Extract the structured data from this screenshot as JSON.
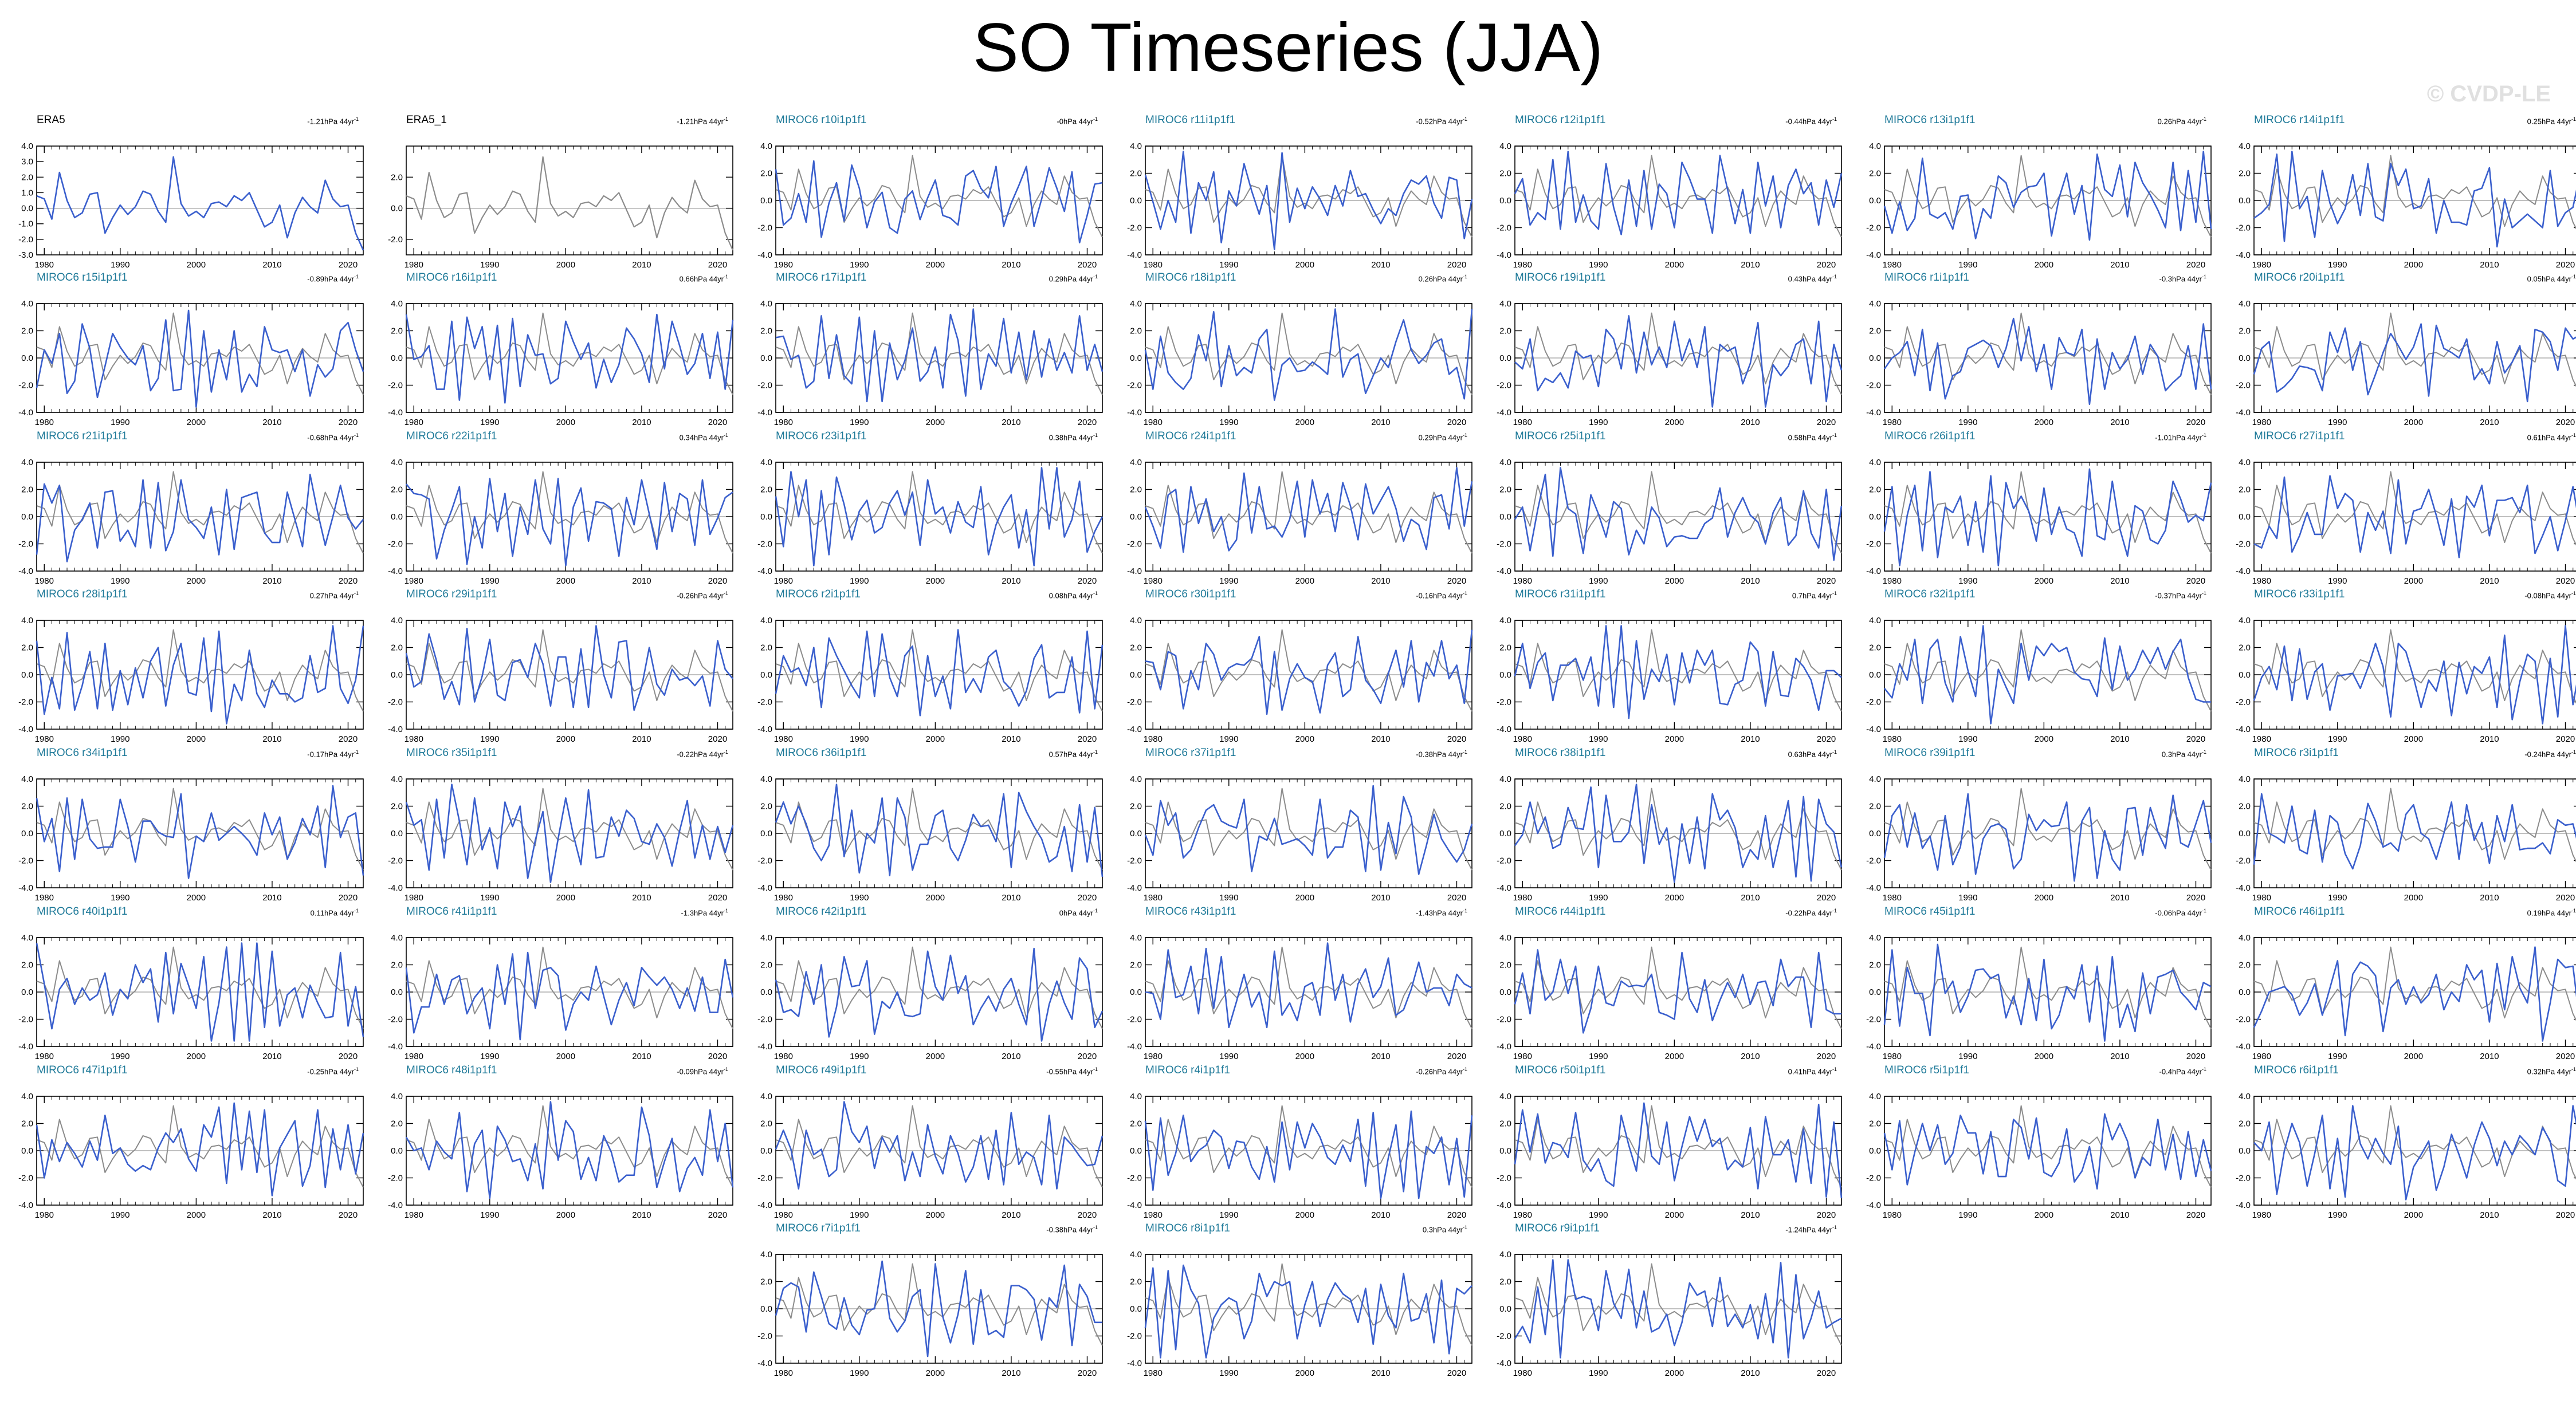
{
  "title": "SO Timeseries (JJA)",
  "watermark": "© CVDP-LE",
  "colors": {
    "model_series": "#3a5fcd",
    "observed_series": "#8c8c8c",
    "model_label": "#1f7a99",
    "observed_label": "#000000",
    "axis": "#000000",
    "zero_line": "#9a9a9a"
  },
  "chart_data": {
    "type": "line",
    "x_range": [
      1979,
      2022
    ],
    "x_ticks": [
      1980,
      1990,
      2000,
      2010,
      2020
    ],
    "ylim": [
      -4,
      4
    ],
    "y_ticks": [
      4.0,
      2.0,
      0.0,
      -2.0,
      -4.0
    ],
    "obs_ylim": [
      -3,
      4
    ],
    "obs_y_ticks": [
      4.0,
      3.0,
      2.0,
      1.0,
      0.0,
      -1.0,
      -2.0,
      -3.0
    ],
    "obs_1_y_ticks": [
      2.0,
      0.0,
      -2.0
    ],
    "trend_unit": "hPa 44yr",
    "trend_exponent": "-1",
    "observed_series": {
      "name": "ERA5",
      "x_start": 1979,
      "values": [
        0.8,
        0.6,
        -0.7,
        2.3,
        0.5,
        -0.6,
        -0.3,
        0.9,
        1.0,
        -1.6,
        -0.6,
        0.2,
        -0.4,
        0.1,
        1.1,
        0.9,
        -0.2,
        -0.9,
        3.3,
        0.3,
        -0.5,
        -0.2,
        -0.6,
        0.3,
        0.4,
        0.1,
        0.8,
        0.5,
        1.0,
        -0.1,
        -1.2,
        -0.9,
        0.2,
        -1.9,
        -0.3,
        0.7,
        0.1,
        -0.3,
        1.8,
        0.6,
        0.1,
        0.2,
        -1.6,
        -2.7
      ]
    },
    "panels": [
      {
        "name": "ERA5",
        "trend": "-1.21",
        "kind": "obs",
        "seed": 0
      },
      {
        "name": "ERA5_1",
        "trend": "-1.21",
        "kind": "obs1",
        "seed": 0
      },
      {
        "name": "MIROC6 r10i1p1f1",
        "trend": "-0",
        "kind": "model",
        "seed": 10
      },
      {
        "name": "MIROC6 r11i1p1f1",
        "trend": "-0.52",
        "kind": "model",
        "seed": 11
      },
      {
        "name": "MIROC6 r12i1p1f1",
        "trend": "-0.44",
        "kind": "model",
        "seed": 12
      },
      {
        "name": "MIROC6 r13i1p1f1",
        "trend": "0.26",
        "kind": "model",
        "seed": 13
      },
      {
        "name": "MIROC6 r14i1p1f1",
        "trend": "0.25",
        "kind": "model",
        "seed": 14
      },
      {
        "name": "MIROC6 r15i1p1f1",
        "trend": "-0.89",
        "kind": "model",
        "seed": 15
      },
      {
        "name": "MIROC6 r16i1p1f1",
        "trend": "0.66",
        "kind": "model",
        "seed": 16
      },
      {
        "name": "MIROC6 r17i1p1f1",
        "trend": "0.29",
        "kind": "model",
        "seed": 17
      },
      {
        "name": "MIROC6 r18i1p1f1",
        "trend": "0.26",
        "kind": "model",
        "seed": 18
      },
      {
        "name": "MIROC6 r19i1p1f1",
        "trend": "0.43",
        "kind": "model",
        "seed": 19
      },
      {
        "name": "MIROC6 r1i1p1f1",
        "trend": "-0.3",
        "kind": "model",
        "seed": 1
      },
      {
        "name": "MIROC6 r20i1p1f1",
        "trend": "0.05",
        "kind": "model",
        "seed": 20
      },
      {
        "name": "MIROC6 r21i1p1f1",
        "trend": "-0.68",
        "kind": "model",
        "seed": 21
      },
      {
        "name": "MIROC6 r22i1p1f1",
        "trend": "0.34",
        "kind": "model",
        "seed": 22
      },
      {
        "name": "MIROC6 r23i1p1f1",
        "trend": "0.38",
        "kind": "model",
        "seed": 23
      },
      {
        "name": "MIROC6 r24i1p1f1",
        "trend": "0.29",
        "kind": "model",
        "seed": 24
      },
      {
        "name": "MIROC6 r25i1p1f1",
        "trend": "0.58",
        "kind": "model",
        "seed": 25
      },
      {
        "name": "MIROC6 r26i1p1f1",
        "trend": "-1.01",
        "kind": "model",
        "seed": 26
      },
      {
        "name": "MIROC6 r27i1p1f1",
        "trend": "0.61",
        "kind": "model",
        "seed": 27
      },
      {
        "name": "MIROC6 r28i1p1f1",
        "trend": "0.27",
        "kind": "model",
        "seed": 28
      },
      {
        "name": "MIROC6 r29i1p1f1",
        "trend": "-0.26",
        "kind": "model",
        "seed": 29
      },
      {
        "name": "MIROC6 r2i1p1f1",
        "trend": "0.08",
        "kind": "model",
        "seed": 2
      },
      {
        "name": "MIROC6 r30i1p1f1",
        "trend": "-0.16",
        "kind": "model",
        "seed": 30
      },
      {
        "name": "MIROC6 r31i1p1f1",
        "trend": "0.7",
        "kind": "model",
        "seed": 31
      },
      {
        "name": "MIROC6 r32i1p1f1",
        "trend": "-0.37",
        "kind": "model",
        "seed": 32
      },
      {
        "name": "MIROC6 r33i1p1f1",
        "trend": "-0.08",
        "kind": "model",
        "seed": 33
      },
      {
        "name": "MIROC6 r34i1p1f1",
        "trend": "-0.17",
        "kind": "model",
        "seed": 34
      },
      {
        "name": "MIROC6 r35i1p1f1",
        "trend": "-0.22",
        "kind": "model",
        "seed": 35
      },
      {
        "name": "MIROC6 r36i1p1f1",
        "trend": "0.57",
        "kind": "model",
        "seed": 36
      },
      {
        "name": "MIROC6 r37i1p1f1",
        "trend": "-0.38",
        "kind": "model",
        "seed": 37
      },
      {
        "name": "MIROC6 r38i1p1f1",
        "trend": "0.63",
        "kind": "model",
        "seed": 38
      },
      {
        "name": "MIROC6 r39i1p1f1",
        "trend": "0.3",
        "kind": "model",
        "seed": 39
      },
      {
        "name": "MIROC6 r3i1p1f1",
        "trend": "-0.24",
        "kind": "model",
        "seed": 3
      },
      {
        "name": "MIROC6 r40i1p1f1",
        "trend": "0.11",
        "kind": "model",
        "seed": 40
      },
      {
        "name": "MIROC6 r41i1p1f1",
        "trend": "-1.3",
        "kind": "model",
        "seed": 41
      },
      {
        "name": "MIROC6 r42i1p1f1",
        "trend": "0",
        "kind": "model",
        "seed": 42
      },
      {
        "name": "MIROC6 r43i1p1f1",
        "trend": "-1.43",
        "kind": "model",
        "seed": 43
      },
      {
        "name": "MIROC6 r44i1p1f1",
        "trend": "-0.22",
        "kind": "model",
        "seed": 44
      },
      {
        "name": "MIROC6 r45i1p1f1",
        "trend": "-0.06",
        "kind": "model",
        "seed": 45
      },
      {
        "name": "MIROC6 r46i1p1f1",
        "trend": "0.19",
        "kind": "model",
        "seed": 46
      },
      {
        "name": "MIROC6 r47i1p1f1",
        "trend": "-0.25",
        "kind": "model",
        "seed": 47
      },
      {
        "name": "MIROC6 r48i1p1f1",
        "trend": "-0.09",
        "kind": "model",
        "seed": 48
      },
      {
        "name": "MIROC6 r49i1p1f1",
        "trend": "-0.55",
        "kind": "model",
        "seed": 49
      },
      {
        "name": "MIROC6 r4i1p1f1",
        "trend": "-0.26",
        "kind": "model",
        "seed": 4
      },
      {
        "name": "MIROC6 r50i1p1f1",
        "trend": "0.41",
        "kind": "model",
        "seed": 50
      },
      {
        "name": "MIROC6 r5i1p1f1",
        "trend": "-0.4",
        "kind": "model",
        "seed": 5
      },
      {
        "name": "MIROC6 r6i1p1f1",
        "trend": "0.32",
        "kind": "model",
        "seed": 6
      },
      {
        "name": "MIROC6 r7i1p1f1",
        "trend": "-0.38",
        "kind": "model",
        "seed": 7
      },
      {
        "name": "MIROC6 r8i1p1f1",
        "trend": "0.3",
        "kind": "model",
        "seed": 8
      },
      {
        "name": "MIROC6 r9i1p1f1",
        "trend": "-1.24",
        "kind": "model",
        "seed": 9
      }
    ]
  }
}
